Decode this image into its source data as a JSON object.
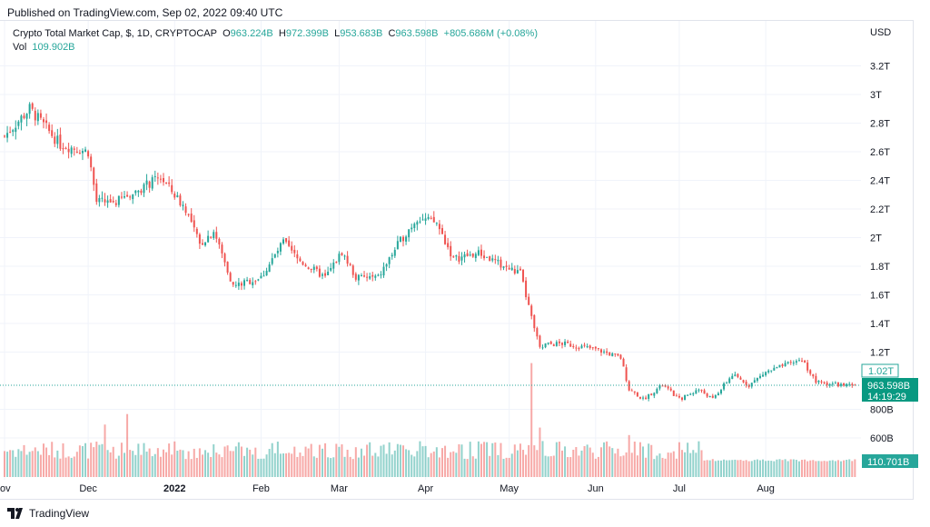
{
  "published": "Published on TradingView.com, Sep 02, 2022 09:40 UTC",
  "legend": {
    "symbol": "Crypto Total Market Cap, $, 1D, CRYPTOCAP",
    "o_label": "O",
    "o": "963.224B",
    "h_label": "H",
    "h": "972.399B",
    "l_label": "L",
    "l": "953.683B",
    "c_label": "C",
    "c": "963.598B",
    "change": "+805.686M (+0.08%)",
    "vol_label": "Vol",
    "vol": "109.902B"
  },
  "currency": "USD",
  "price_tag": {
    "ref": "1.02T",
    "last": "963.598B",
    "countdown": "14:19:29",
    "volume": "110.701B"
  },
  "logo": "TradingView",
  "colors": {
    "up": "#26a69a",
    "down": "#ef5350"
  },
  "chart_data": {
    "type": "candlestick",
    "title": "Crypto Total Market Cap, $, 1D, CRYPTOCAP",
    "x_ticks": [
      {
        "label": "ov",
        "day": 0
      },
      {
        "label": "Dec",
        "day": 30
      },
      {
        "label": "2022",
        "day": 61
      },
      {
        "label": "Feb",
        "day": 92
      },
      {
        "label": "Mar",
        "day": 120
      },
      {
        "label": "Apr",
        "day": 151
      },
      {
        "label": "May",
        "day": 181
      },
      {
        "label": "Jun",
        "day": 212
      },
      {
        "label": "Jul",
        "day": 242
      },
      {
        "label": "Aug",
        "day": 273
      }
    ],
    "y_ticks": [
      {
        "label": "3.2T",
        "v": 3.2
      },
      {
        "label": "3T",
        "v": 3.0
      },
      {
        "label": "2.8T",
        "v": 2.8
      },
      {
        "label": "2.6T",
        "v": 2.6
      },
      {
        "label": "2.4T",
        "v": 2.4
      },
      {
        "label": "2.2T",
        "v": 2.2
      },
      {
        "label": "2T",
        "v": 2.0
      },
      {
        "label": "1.8T",
        "v": 1.8
      },
      {
        "label": "1.6T",
        "v": 1.6
      },
      {
        "label": "1.4T",
        "v": 1.4
      },
      {
        "label": "1.2T",
        "v": 1.2
      },
      {
        "label": "800B",
        "v": 0.8
      },
      {
        "label": "600B",
        "v": 0.6
      }
    ],
    "y_unit": "T USD",
    "close_anchors_day_T": [
      [
        0,
        2.71
      ],
      [
        9,
        2.9
      ],
      [
        20,
        2.65
      ],
      [
        30,
        2.6
      ],
      [
        33,
        2.25
      ],
      [
        40,
        2.25
      ],
      [
        56,
        2.42
      ],
      [
        65,
        2.2
      ],
      [
        70,
        1.95
      ],
      [
        75,
        2.05
      ],
      [
        82,
        1.66
      ],
      [
        92,
        1.72
      ],
      [
        100,
        1.97
      ],
      [
        105,
        1.85
      ],
      [
        115,
        1.72
      ],
      [
        121,
        1.9
      ],
      [
        126,
        1.72
      ],
      [
        134,
        1.72
      ],
      [
        141,
        1.95
      ],
      [
        148,
        2.14
      ],
      [
        155,
        2.1
      ],
      [
        161,
        1.85
      ],
      [
        170,
        1.89
      ],
      [
        181,
        1.78
      ],
      [
        185,
        1.75
      ],
      [
        189,
        1.44
      ],
      [
        192,
        1.25
      ],
      [
        200,
        1.26
      ],
      [
        212,
        1.22
      ],
      [
        221,
        1.16
      ],
      [
        224,
        0.94
      ],
      [
        229,
        0.87
      ],
      [
        236,
        0.97
      ],
      [
        242,
        0.87
      ],
      [
        249,
        0.94
      ],
      [
        254,
        0.87
      ],
      [
        261,
        1.04
      ],
      [
        267,
        0.97
      ],
      [
        273,
        1.06
      ],
      [
        286,
        1.15
      ],
      [
        291,
        0.99
      ],
      [
        305,
        0.96
      ]
    ],
    "volume_B_spikes": [
      [
        189,
        760
      ],
      [
        192,
        330
      ],
      [
        193,
        240
      ],
      [
        44,
        420
      ],
      [
        36,
        350
      ],
      [
        224,
        280
      ]
    ],
    "last_close_T": 0.9636,
    "ref_line_T": 1.02
  }
}
